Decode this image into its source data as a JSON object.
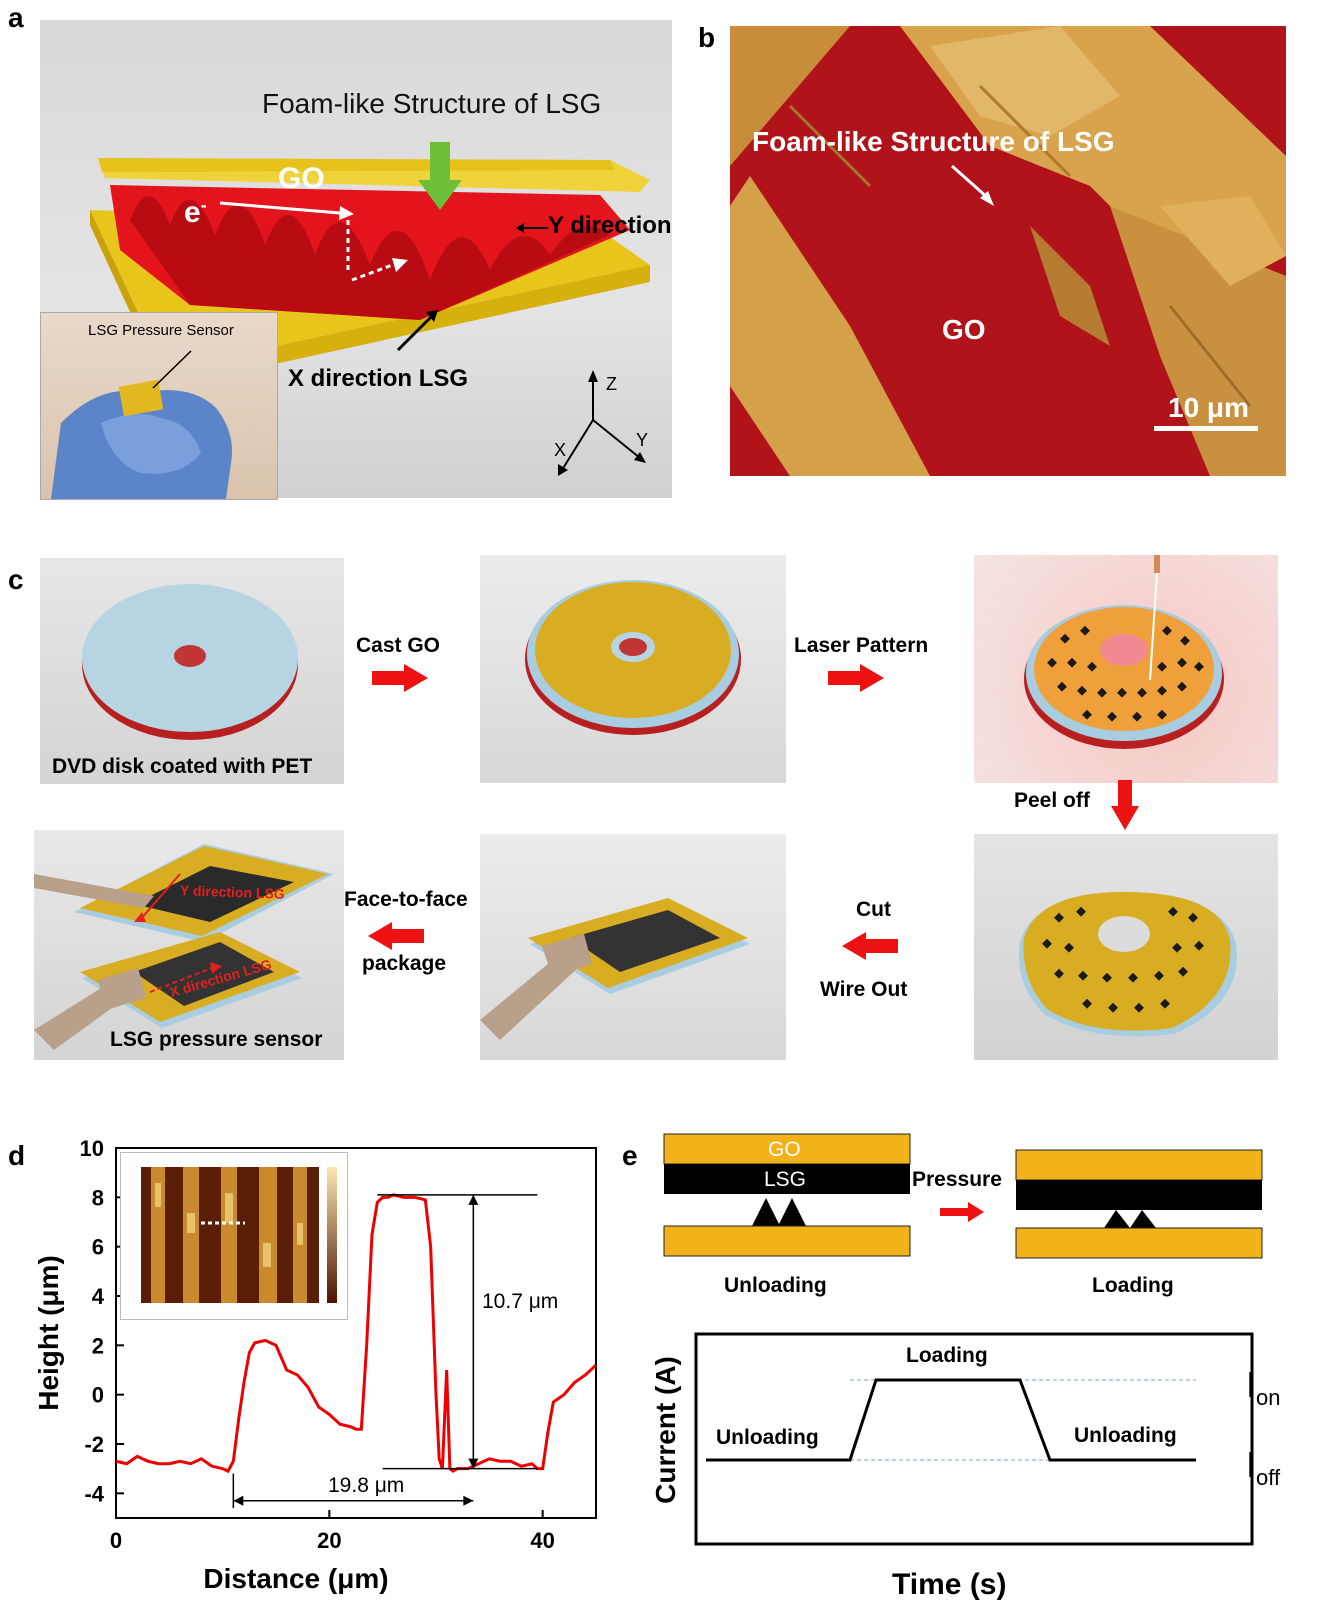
{
  "panel_a": {
    "letter": "a",
    "title": "Foam-like Structure of LSG",
    "go": "GO",
    "electron": "e",
    "electron_sup": "-",
    "y_direction": "Y direction",
    "x_direction": "X direction LSG",
    "inset_label": "LSG Pressure Sensor",
    "axes": {
      "z": "Z",
      "x": "X",
      "y": "Y"
    }
  },
  "panel_b": {
    "letter": "b",
    "title": "Foam-like Structure of LSG",
    "go": "GO",
    "scale_bar": "10 μm"
  },
  "panel_c": {
    "letter": "c",
    "step1_caption": "DVD disk coated with PET",
    "arrow1": "Cast GO",
    "arrow2": "Laser Pattern",
    "arrow3": "Peel off",
    "arrow4_line1": "Cut",
    "arrow4_line2": "Wire Out",
    "arrow5_line1": "Face-to-face",
    "arrow5_line2": "package",
    "y_lsg": "Y direction LSG",
    "x_lsg": "X direction LSG",
    "final_caption": "LSG pressure sensor"
  },
  "panel_d": {
    "letter": "d",
    "annotation_height": "10.7 μm",
    "annotation_width": "19.8 μm"
  },
  "panel_e": {
    "letter": "e",
    "go": "GO",
    "lsg": "LSG",
    "pressure": "Pressure",
    "unloading": "Unloading",
    "loading": "Loading",
    "plot": {
      "ylabel": "Current (A)",
      "xlabel": "Time (s)",
      "loading": "Loading",
      "unloading_left": "Unloading",
      "unloading_right": "Unloading",
      "i_on": "I",
      "i_on_sub": "on",
      "i_off": "I",
      "i_off_sub": "off"
    }
  },
  "chart_data": {
    "type": "line",
    "xlabel": "Distance (μm)",
    "ylabel": "Height (μm)",
    "xlim": [
      0,
      45
    ],
    "ylim": [
      -5,
      10
    ],
    "xticks": [
      0,
      20,
      40
    ],
    "yticks": [
      -4,
      -2,
      0,
      2,
      4,
      6,
      8,
      10
    ],
    "grid": false,
    "color": "#ee0000",
    "series": [
      {
        "x": [
          0,
          1,
          2,
          3,
          4,
          5,
          6,
          7,
          8,
          9,
          10,
          10.5,
          11,
          11.5,
          12,
          12.5,
          13,
          14,
          15,
          16,
          17,
          18,
          19,
          20,
          21,
          22,
          22.5,
          23,
          23.5,
          24,
          24.5,
          25,
          25.5,
          26,
          27,
          28,
          29,
          29.5,
          30,
          30.3,
          30.6,
          31,
          31.3,
          31.6,
          32,
          32.5,
          33,
          34,
          35,
          36,
          37,
          38,
          39,
          39.5,
          40,
          40.5,
          41,
          42,
          43,
          44,
          45
        ],
        "y": [
          -2.7,
          -2.8,
          -2.5,
          -2.7,
          -2.8,
          -2.8,
          -2.7,
          -2.8,
          -2.6,
          -2.9,
          -3.0,
          -3.1,
          -2.7,
          -1.0,
          0.5,
          1.7,
          2.1,
          2.2,
          2.0,
          1.0,
          0.8,
          0.3,
          -0.5,
          -0.8,
          -1.2,
          -1.3,
          -1.4,
          -1.4,
          2.0,
          6.5,
          7.8,
          8.0,
          8.0,
          8.1,
          8.0,
          8.0,
          7.9,
          6.0,
          0.0,
          -2.6,
          -3.0,
          1.0,
          -3.0,
          -3.1,
          -3.0,
          -3.0,
          -3.0,
          -2.8,
          -2.6,
          -2.7,
          -2.7,
          -2.9,
          -2.8,
          -3.0,
          -3.0,
          -1.5,
          -0.3,
          0.0,
          0.5,
          0.8,
          1.2
        ]
      }
    ]
  }
}
